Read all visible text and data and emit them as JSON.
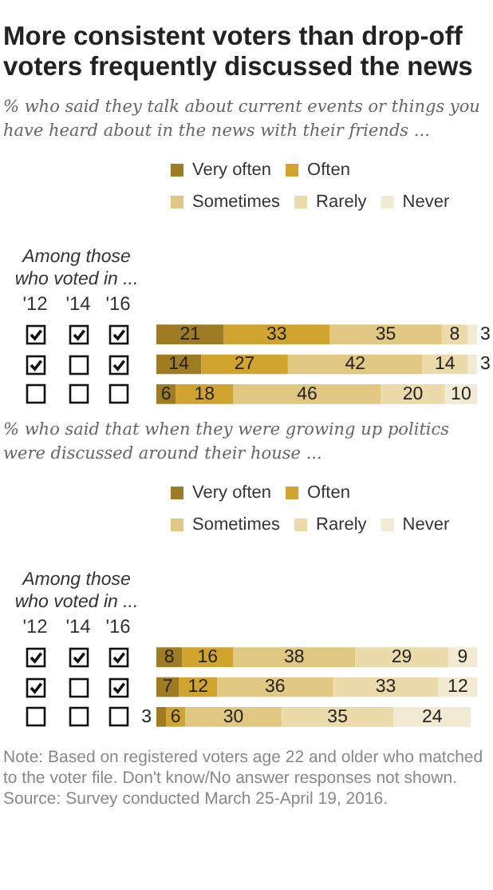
{
  "chart_data": [
    {
      "type": "bar",
      "orientation": "horizontal",
      "stacked": true,
      "data_labels": true,
      "legend": "top",
      "title": "More consistent voters than drop-off voters frequently discussed the news",
      "subtitle": "% who said they talk about current events or things you have heard about in the news with their friends ...",
      "categories": [
        null,
        null,
        null
      ],
      "series": [
        {
          "name": "Very often",
          "color": "#9e7c24",
          "values": [
            21,
            14,
            6
          ]
        },
        {
          "name": "Often",
          "color": "#d1a42f",
          "values": [
            33,
            27,
            18
          ]
        },
        {
          "name": "Sometimes",
          "color": "#e0c882",
          "values": [
            35,
            42,
            46
          ]
        },
        {
          "name": "Rarely",
          "color": "#ebdbaa",
          "values": [
            8,
            14,
            20
          ]
        },
        {
          "name": "Never",
          "color": "#f3ead3",
          "values": [
            3,
            3,
            10
          ]
        }
      ],
      "annotations": [
        "Among those who voted in ...",
        "'12",
        "'14",
        "'16"
      ]
    },
    {
      "type": "bar",
      "orientation": "horizontal",
      "stacked": true,
      "data_labels": true,
      "legend": "top",
      "subtitle": "% who said that when they were growing up politics were discussed around their house ...",
      "categories": [
        null,
        null,
        null
      ],
      "series": [
        {
          "name": "Very often",
          "color": "#9e7c24",
          "values": [
            8,
            7,
            3
          ]
        },
        {
          "name": "Often",
          "color": "#d1a42f",
          "values": [
            16,
            12,
            6
          ]
        },
        {
          "name": "Sometimes",
          "color": "#e0c882",
          "values": [
            38,
            36,
            30
          ]
        },
        {
          "name": "Rarely",
          "color": "#ebdbaa",
          "values": [
            29,
            33,
            35
          ]
        },
        {
          "name": "Never",
          "color": "#f3ead3",
          "values": [
            9,
            12,
            24
          ]
        }
      ],
      "annotations": [
        "Among those who voted in ...",
        "'12",
        "'14",
        "'16",
        "Note: Based on registered voters age 22 and older who matched to the voter file. Don't know/No answer responses not shown.",
        "Source: Survey conducted March 25-April 19, 2016."
      ]
    }
  ]
}
